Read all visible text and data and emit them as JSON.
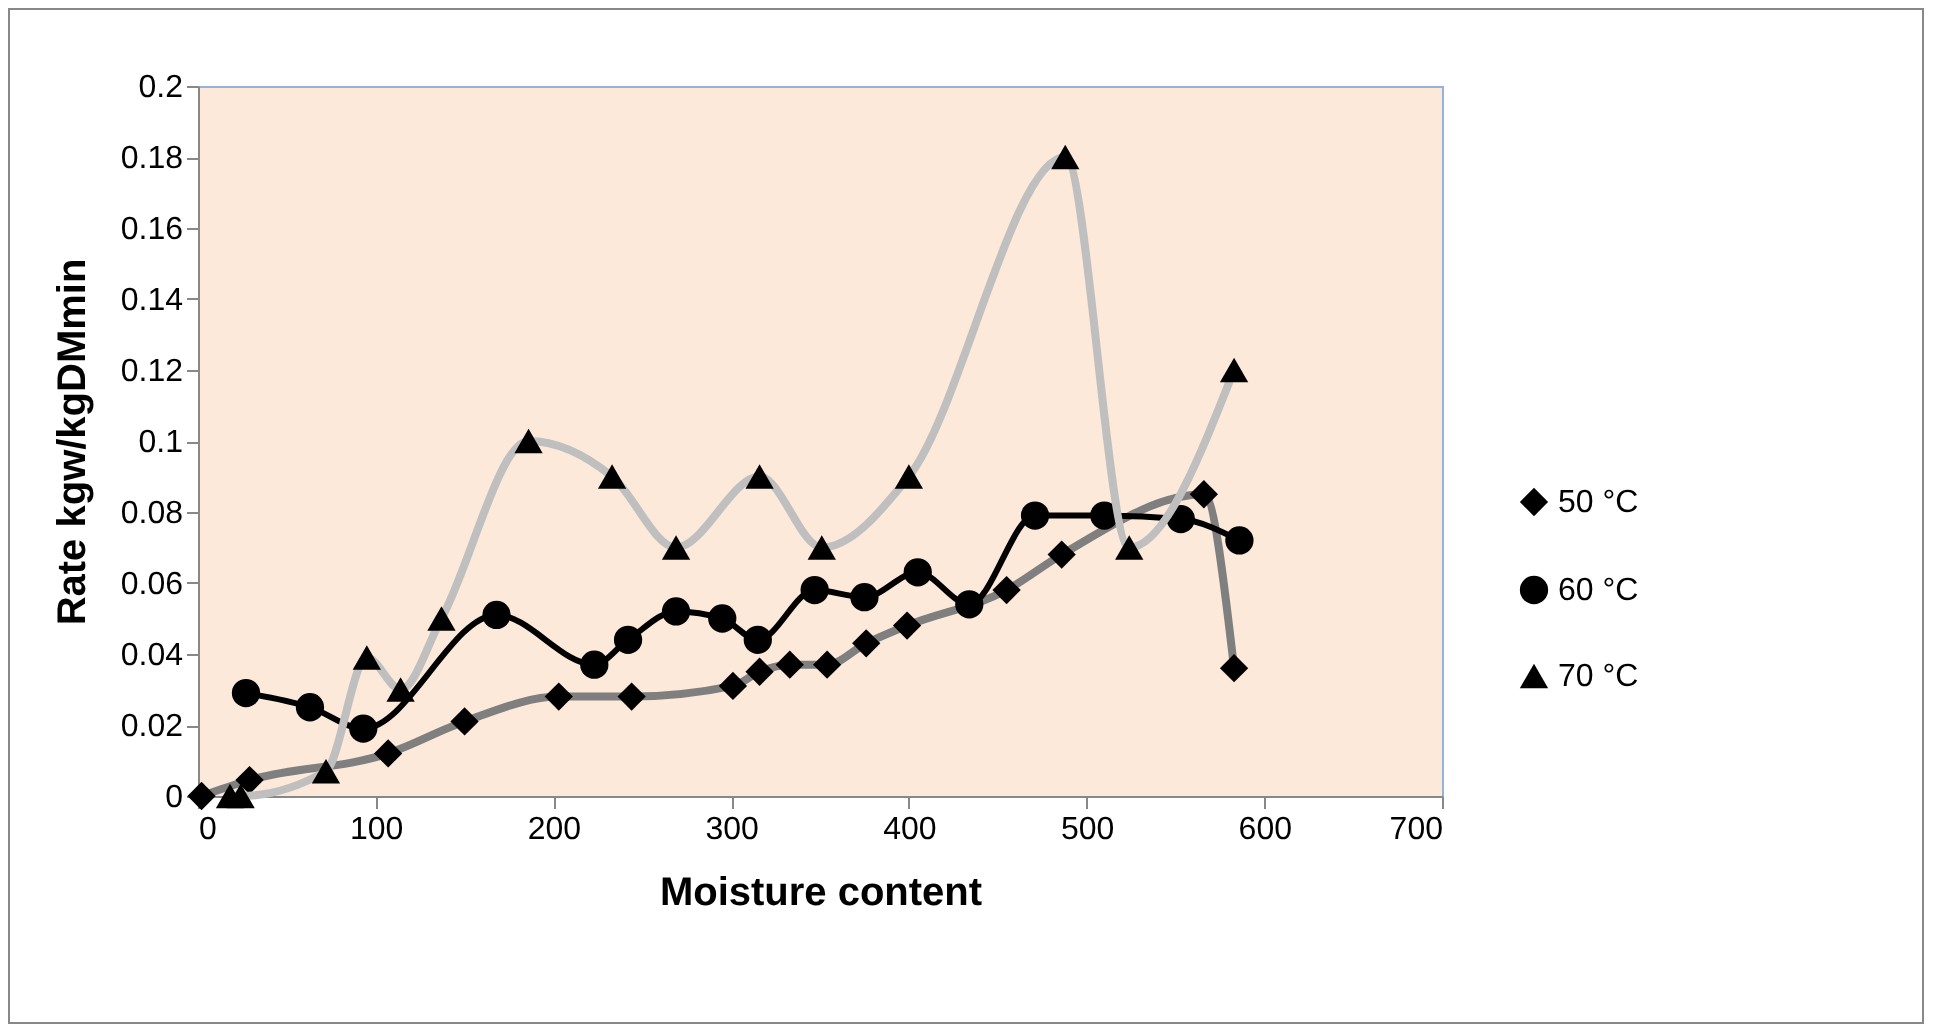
{
  "chart_data": {
    "type": "line",
    "xlabel": "Moisture content",
    "ylabel": "Rate kgw/kgDMmin",
    "xlim": [
      0,
      700
    ],
    "xticks": [
      0,
      100,
      200,
      300,
      400,
      500,
      600,
      700
    ],
    "ylim": [
      0,
      0.2
    ],
    "yticks": [
      0,
      0.02,
      0.04,
      0.06,
      0.08,
      0.1,
      0.12,
      0.14,
      0.16,
      0.18,
      0.2
    ],
    "grid": false,
    "legend": "right",
    "series": [
      {
        "name": "50 °C",
        "color": "#7f7f7f",
        "marker": "diamond",
        "x": [
          2,
          29,
          107,
          150,
          203,
          244,
          301,
          316,
          333,
          354,
          376,
          399,
          455,
          486,
          566,
          583
        ],
        "values": [
          0,
          0.0045,
          0.012,
          0.021,
          0.028,
          0.028,
          0.031,
          0.035,
          0.037,
          0.037,
          0.043,
          0.048,
          0.058,
          0.068,
          0.085,
          0.036
        ]
      },
      {
        "name": "60 °C",
        "color": "#000000",
        "marker": "circle",
        "x": [
          27,
          63,
          93,
          168,
          223,
          242,
          269,
          295,
          315,
          347,
          375,
          405,
          434,
          471,
          510,
          553,
          586
        ],
        "values": [
          0.029,
          0.025,
          0.019,
          0.051,
          0.037,
          0.044,
          0.052,
          0.05,
          0.044,
          0.058,
          0.056,
          0.063,
          0.054,
          0.079,
          0.079,
          0.078,
          0.072
        ]
      },
      {
        "name": "70 °C",
        "color": "#bfbfbf",
        "marker": "triangle",
        "x": [
          18,
          24,
          72,
          95,
          114,
          137,
          186,
          233,
          269,
          316,
          351,
          400,
          488,
          524,
          583
        ],
        "values": [
          0,
          0,
          0.007,
          0.039,
          0.03,
          0.05,
          0.1,
          0.09,
          0.07,
          0.09,
          0.07,
          0.09,
          0.18,
          0.07,
          0.12
        ]
      }
    ]
  }
}
